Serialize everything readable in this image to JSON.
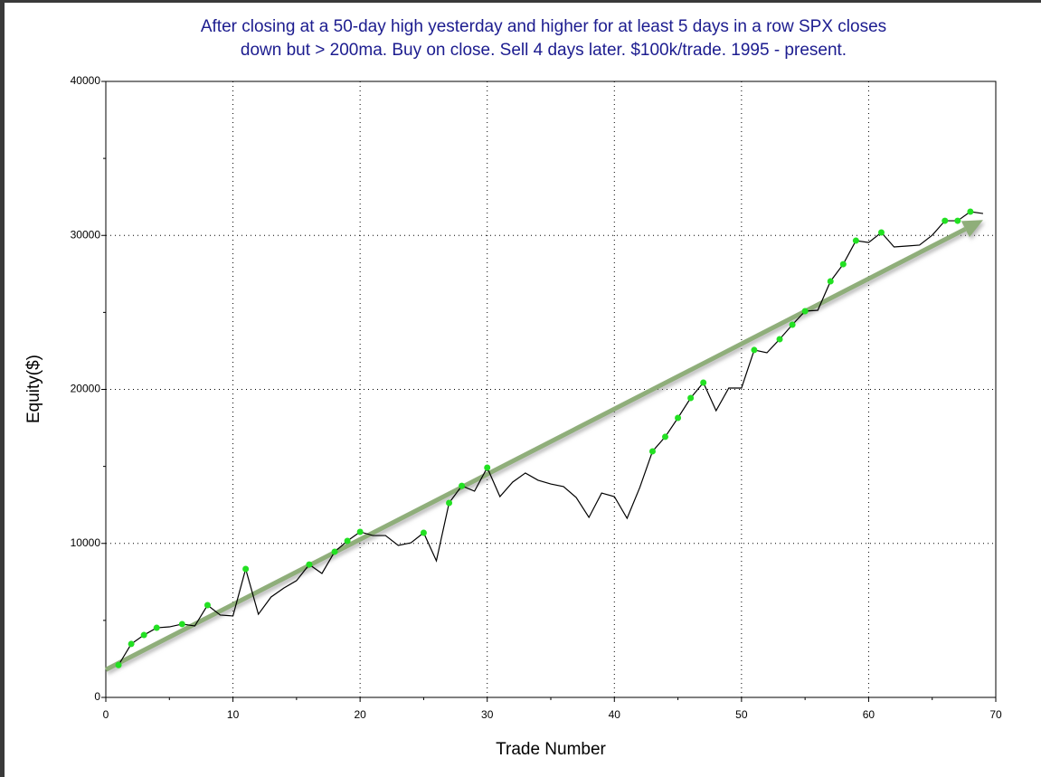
{
  "chart_data": {
    "type": "line",
    "title": [
      "After closing at a 50-day high yesterday and higher for at least 5 days in a row SPX closes",
      "down but > 200ma. Buy on close. Sell 4 days later. $100k/trade. 1995 - present."
    ],
    "x_label": "Trade Number",
    "y_label": "Equity($)",
    "xlim": [
      0,
      70
    ],
    "ylim": [
      0,
      40000
    ],
    "xticks": [
      0,
      10,
      20,
      30,
      40,
      50,
      60,
      70
    ],
    "yticks": [
      0,
      10000,
      20000,
      30000,
      40000
    ],
    "x_minor_ticks": [
      5,
      15,
      25,
      35,
      45,
      55,
      65
    ],
    "y_minor_ticks": [
      5000,
      15000,
      25000,
      35000
    ],
    "grid": true,
    "series": [
      {
        "type": "line",
        "color": "#000000",
        "x": [
          1,
          2,
          3,
          4,
          5,
          6,
          7,
          8,
          9,
          10,
          11,
          12,
          13,
          14,
          15,
          16,
          17,
          18,
          19,
          20,
          21,
          22,
          23,
          24,
          25,
          26,
          27,
          28,
          29,
          30,
          31,
          32,
          33,
          34,
          35,
          36,
          37,
          38,
          39,
          40,
          41,
          42,
          43,
          44,
          45,
          46,
          47,
          48,
          49,
          50,
          51,
          52,
          53,
          54,
          55,
          56,
          57,
          58,
          59,
          60,
          61,
          62,
          63,
          64,
          65,
          66,
          67,
          68,
          69
        ],
        "values": [
          2100,
          3470,
          4050,
          4520,
          4580,
          4760,
          4640,
          5990,
          5350,
          5290,
          8340,
          5400,
          6520,
          7100,
          7580,
          8630,
          8050,
          9460,
          10160,
          10750,
          10510,
          10510,
          9870,
          10040,
          10690,
          8870,
          12630,
          13740,
          13390,
          14920,
          13040,
          13980,
          14570,
          14100,
          13860,
          13690,
          12980,
          11690,
          13270,
          13040,
          11630,
          13630,
          15980,
          16920,
          18150,
          19440,
          20440,
          18620,
          20090,
          20090,
          22560,
          22380,
          23260,
          24200,
          25080,
          25140,
          27020,
          28130,
          29660,
          29540,
          30190,
          29250,
          29310,
          29370,
          30010,
          30950,
          30950,
          31540,
          31420
        ]
      },
      {
        "type": "scatter",
        "color": "#22e022",
        "x": [
          1,
          2,
          3,
          4,
          6,
          8,
          11,
          16,
          18,
          19,
          20,
          25,
          27,
          28,
          30,
          43,
          44,
          45,
          46,
          47,
          51,
          53,
          54,
          55,
          57,
          58,
          59,
          61,
          66,
          67,
          68
        ],
        "values": [
          2100,
          3470,
          4050,
          4520,
          4760,
          5990,
          8340,
          8630,
          9460,
          10160,
          10750,
          10690,
          12630,
          13740,
          14920,
          15980,
          16920,
          18150,
          19440,
          20440,
          22560,
          23260,
          24200,
          25080,
          27020,
          28130,
          29660,
          30190,
          30950,
          30950,
          31540
        ]
      }
    ],
    "trend_arrow": {
      "x": [
        0,
        69
      ],
      "y": [
        1800,
        31000
      ],
      "color": "#8fae7a"
    }
  }
}
